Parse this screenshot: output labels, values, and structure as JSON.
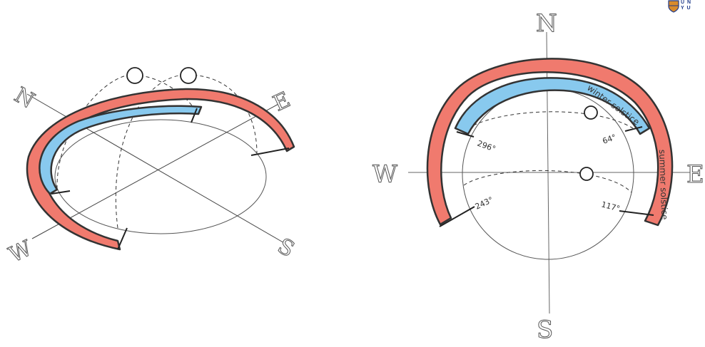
{
  "left_diagram": {
    "compass": {
      "n": "N",
      "e": "E",
      "s": "S",
      "w": "W"
    }
  },
  "right_diagram": {
    "compass": {
      "n": "N",
      "e": "E",
      "s": "S",
      "w": "W"
    },
    "winter_label": "winter solstice",
    "summer_label": "summer solstice",
    "angles": {
      "nw": "296°",
      "ne": "64°",
      "sw": "243°",
      "se": "117°"
    }
  },
  "logo": {
    "line1": "U N",
    "line2": "Y U"
  },
  "colors": {
    "summer_band": "#f07a6e",
    "winter_band": "#88c9ee",
    "ink": "#333333"
  }
}
